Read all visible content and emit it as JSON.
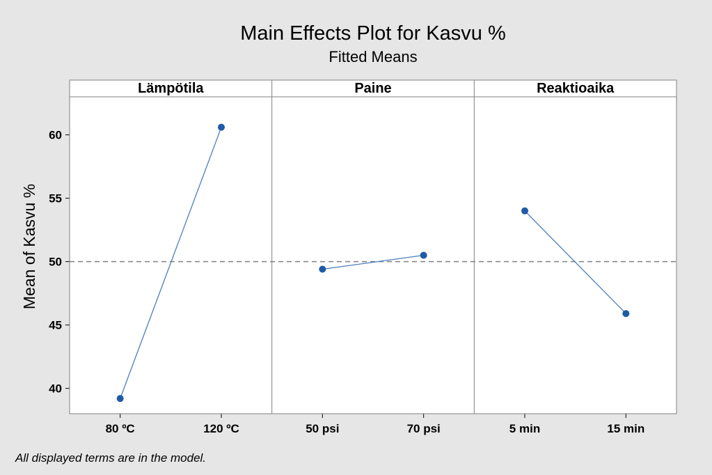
{
  "chart_data": {
    "type": "line",
    "title": "Main Effects Plot for Kasvu %",
    "subtitle": "Fitted Means",
    "ylabel": "Mean of Kasvu %",
    "ylim": [
      38,
      63
    ],
    "yticks": [
      40,
      45,
      50,
      55,
      60
    ],
    "reference_line": 50,
    "footnote": "All displayed terms are in the model.",
    "colors": {
      "line": "#4a7ebb",
      "point": "#1f5aa6",
      "reference": "#808080",
      "background": "#e6e6e6",
      "plot_area": "#ffffff"
    },
    "panels": [
      {
        "factor": "Lämpötila",
        "categories": [
          "80 ºC",
          "120 ºC"
        ],
        "values": [
          39.2,
          60.6
        ]
      },
      {
        "factor": "Paine",
        "categories": [
          "50 psi",
          "70 psi"
        ],
        "values": [
          49.4,
          50.5
        ]
      },
      {
        "factor": "Reaktioaika",
        "categories": [
          "5 min",
          "15 min"
        ],
        "values": [
          54.0,
          45.9
        ]
      }
    ]
  }
}
